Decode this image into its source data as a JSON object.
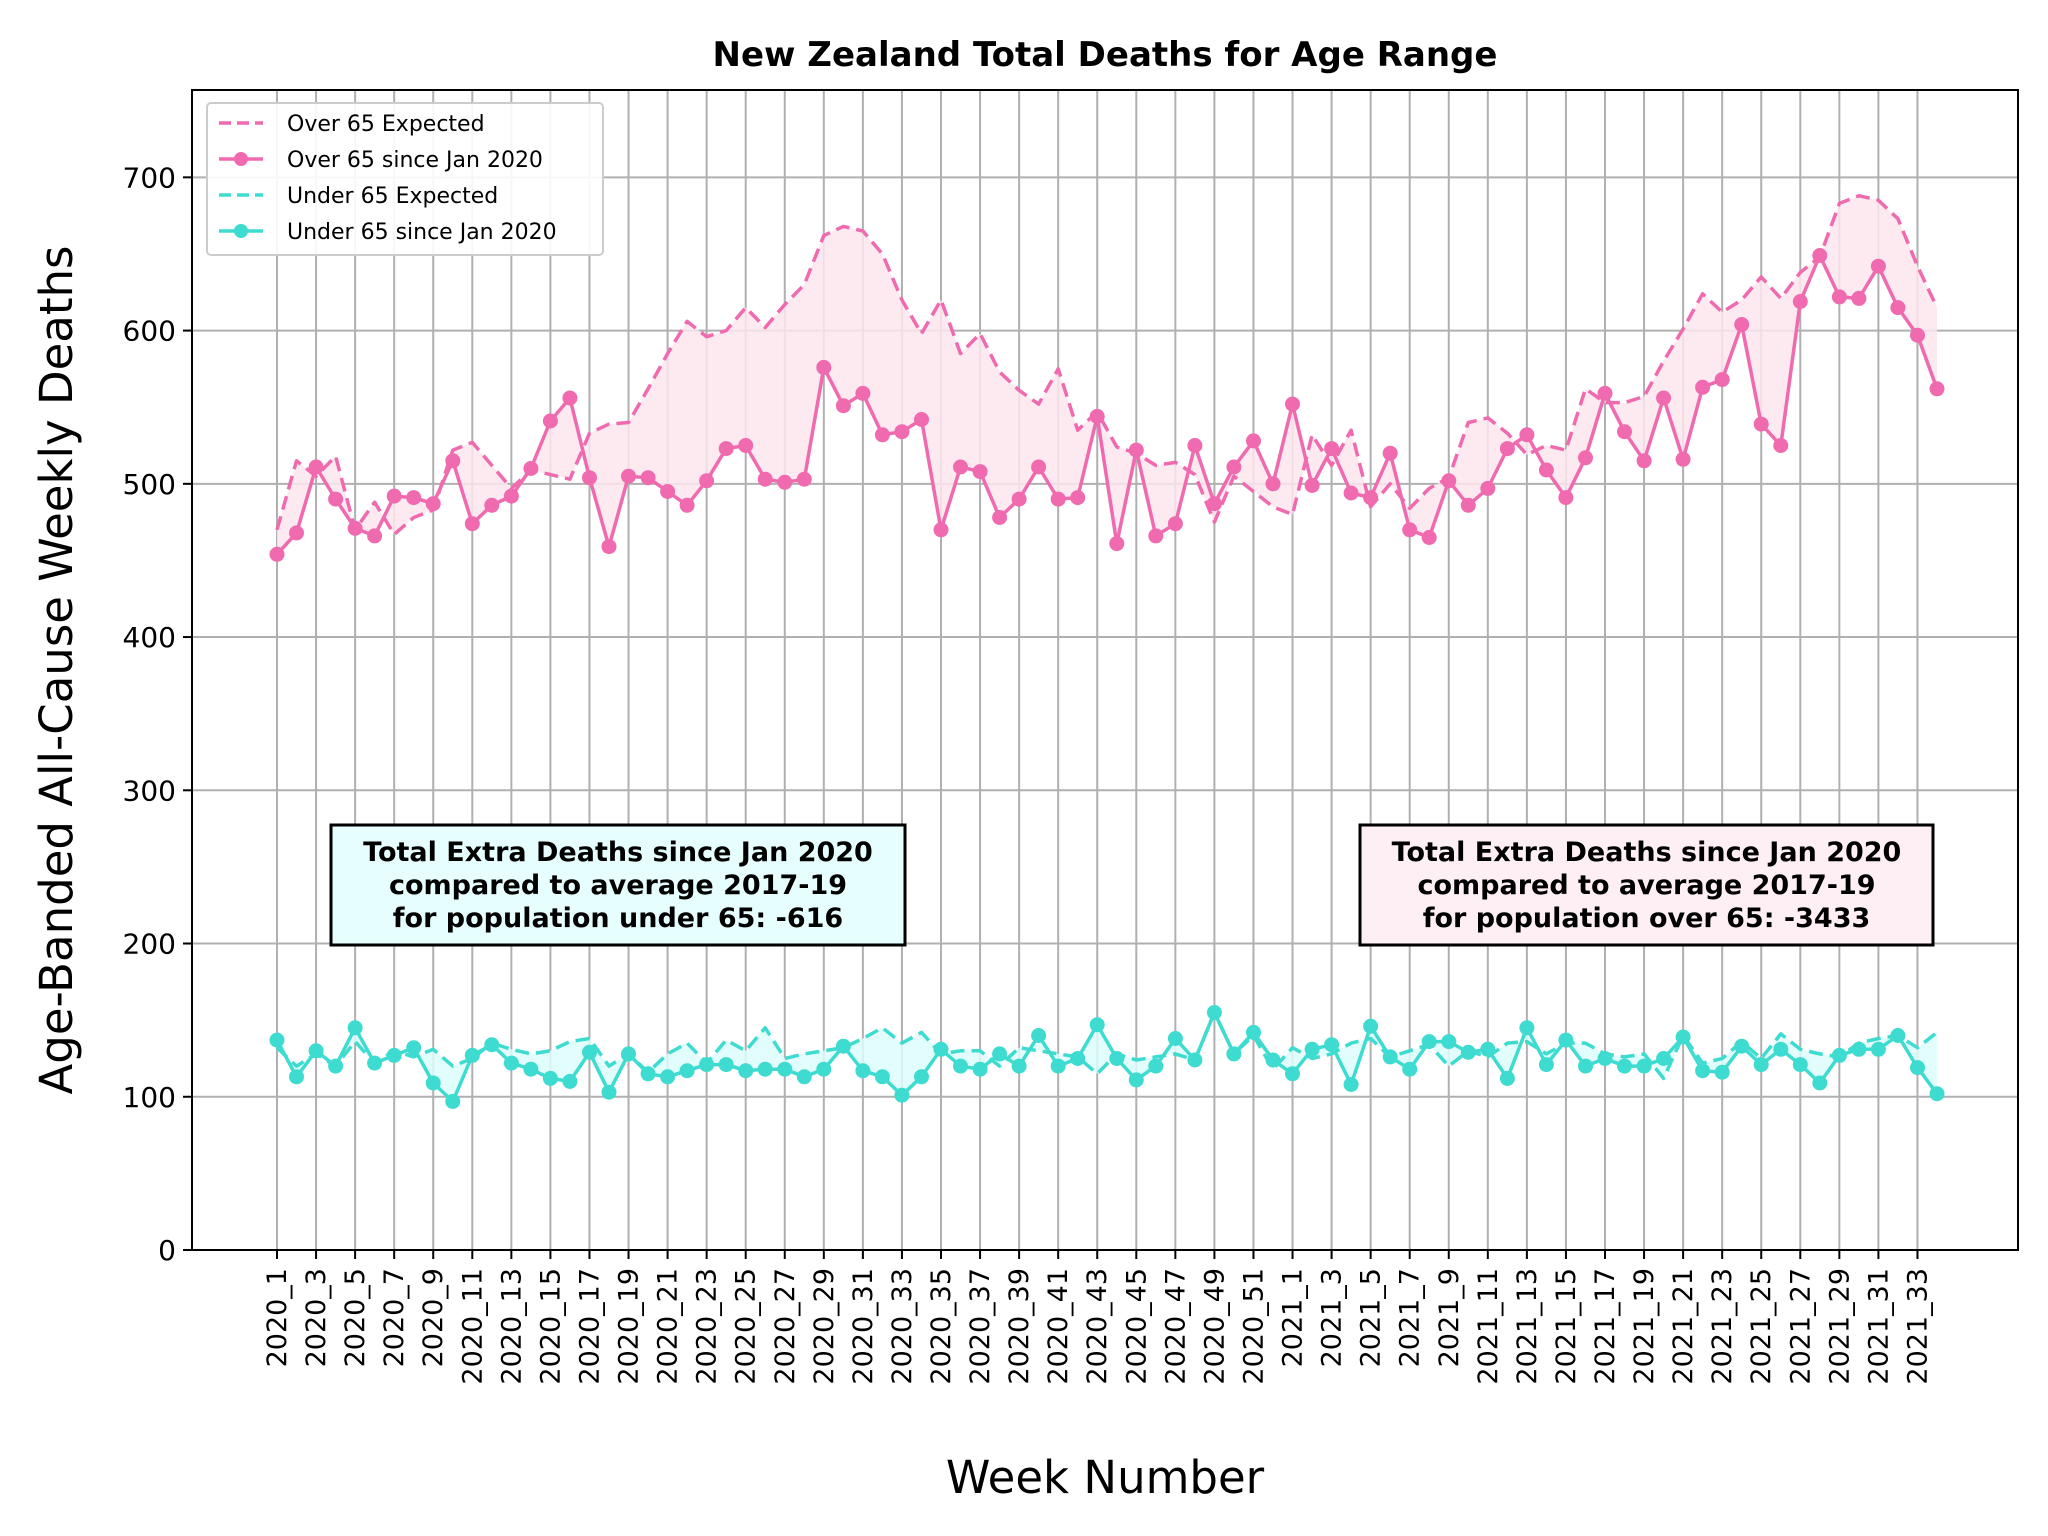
{
  "chart_data": {
    "type": "line",
    "title": "New Zealand Total Deaths for Age Range",
    "xlabel": "Week Number",
    "ylabel": "Age-Banded All-Cause Weekly Deaths",
    "ylim": [
      0,
      757
    ],
    "yticks": [
      0,
      100,
      200,
      300,
      400,
      500,
      600,
      700
    ],
    "grid": true,
    "legend_position": "upper-left",
    "x": [
      "2020_1",
      "2020_2",
      "2020_3",
      "2020_4",
      "2020_5",
      "2020_6",
      "2020_7",
      "2020_8",
      "2020_9",
      "2020_10",
      "2020_11",
      "2020_12",
      "2020_13",
      "2020_14",
      "2020_15",
      "2020_16",
      "2020_17",
      "2020_18",
      "2020_19",
      "2020_20",
      "2020_21",
      "2020_22",
      "2020_23",
      "2020_24",
      "2020_25",
      "2020_26",
      "2020_27",
      "2020_28",
      "2020_29",
      "2020_30",
      "2020_31",
      "2020_32",
      "2020_33",
      "2020_34",
      "2020_35",
      "2020_36",
      "2020_37",
      "2020_38",
      "2020_39",
      "2020_40",
      "2020_41",
      "2020_42",
      "2020_43",
      "2020_44",
      "2020_45",
      "2020_46",
      "2020_47",
      "2020_48",
      "2020_49",
      "2020_50",
      "2020_51",
      "2020_52",
      "2021_1",
      "2021_2",
      "2021_3",
      "2021_4",
      "2021_5",
      "2021_6",
      "2021_7",
      "2021_8",
      "2021_9",
      "2021_10",
      "2021_11",
      "2021_12",
      "2021_13",
      "2021_14",
      "2021_15",
      "2021_16",
      "2021_17",
      "2021_18",
      "2021_19",
      "2021_20",
      "2021_21",
      "2021_22",
      "2021_23",
      "2021_24",
      "2021_25",
      "2021_26",
      "2021_27",
      "2021_28",
      "2021_29",
      "2021_30",
      "2021_31",
      "2021_32",
      "2021_33",
      "2021_34"
    ],
    "xtick_labels": [
      "2020_1",
      "2020_3",
      "2020_5",
      "2020_7",
      "2020_9",
      "2020_11",
      "2020_13",
      "2020_15",
      "2020_17",
      "2020_19",
      "2020_21",
      "2020_23",
      "2020_25",
      "2020_27",
      "2020_29",
      "2020_31",
      "2020_33",
      "2020_35",
      "2020_37",
      "2020_39",
      "2020_41",
      "2020_43",
      "2020_45",
      "2020_47",
      "2020_49",
      "2020_51",
      "2021_1",
      "2021_3",
      "2021_5",
      "2021_7",
      "2021_9",
      "2021_11",
      "2021_13",
      "2021_15",
      "2021_17",
      "2021_19",
      "2021_21",
      "2021_23",
      "2021_25",
      "2021_27",
      "2021_29",
      "2021_31",
      "2021_33"
    ],
    "series": [
      {
        "name": "Over 65 Expected",
        "style": "dashed",
        "color": "#f06aaf",
        "values": [
          470,
          515,
          505,
          518,
          470,
          488,
          467,
          478,
          483,
          522,
          527,
          512,
          497,
          509,
          506,
          503,
          533,
          539,
          540,
          562,
          585,
          606,
          596,
          600,
          615,
          602,
          617,
          630,
          662,
          668,
          665,
          650,
          620,
          598,
          620,
          585,
          598,
          573,
          561,
          552,
          575,
          535,
          547,
          524,
          520,
          512,
          514,
          506,
          475,
          505,
          495,
          485,
          480,
          532,
          512,
          535,
          485,
          500,
          484,
          497,
          504,
          540,
          543,
          533,
          519,
          525,
          522,
          562,
          553,
          553,
          557,
          580,
          601,
          624,
          612,
          620,
          635,
          621,
          638,
          648,
          683,
          688,
          685,
          673,
          642,
          615
        ]
      },
      {
        "name": "Over 65 since Jan 2020",
        "style": "solid-marker",
        "color": "#f06aaf",
        "values": [
          454,
          468,
          511,
          490,
          471,
          466,
          492,
          491,
          487,
          515,
          474,
          486,
          492,
          510,
          541,
          556,
          504,
          459,
          505,
          504,
          495,
          486,
          502,
          523,
          525,
          503,
          501,
          503,
          576,
          551,
          559,
          532,
          534,
          542,
          470,
          511,
          508,
          478,
          490,
          511,
          490,
          491,
          544,
          461,
          522,
          466,
          474,
          525,
          487,
          511,
          528,
          500,
          552,
          499,
          523,
          494,
          491,
          520,
          470,
          465,
          502,
          486,
          497,
          523,
          532,
          509,
          491,
          517,
          559,
          534,
          515,
          556,
          516,
          563,
          568,
          604,
          539,
          525,
          619,
          649,
          622,
          621,
          642,
          615,
          597,
          562
        ]
      },
      {
        "name": "Under 65 Expected",
        "style": "dashed",
        "color": "#3edbd0",
        "values": [
          132,
          120,
          128,
          120,
          136,
          122,
          130,
          126,
          131,
          120,
          125,
          135,
          131,
          128,
          130,
          136,
          138,
          120,
          128,
          116,
          128,
          135,
          122,
          137,
          130,
          145,
          125,
          128,
          130,
          132,
          138,
          145,
          135,
          142,
          128,
          130,
          130,
          120,
          132,
          130,
          128,
          126,
          115,
          128,
          124,
          126,
          128,
          124,
          155,
          128,
          140,
          118,
          132,
          125,
          128,
          135,
          138,
          126,
          130,
          134,
          120,
          130,
          126,
          135,
          136,
          128,
          135,
          135,
          128,
          126,
          128,
          112,
          140,
          122,
          125,
          136,
          125,
          141,
          131,
          128,
          126,
          135,
          138,
          140,
          132,
          142
        ]
      },
      {
        "name": "Under 65 since Jan 2020",
        "style": "solid-marker",
        "color": "#3edbd0",
        "values": [
          137,
          113,
          130,
          120,
          145,
          122,
          127,
          132,
          109,
          97,
          127,
          134,
          122,
          118,
          112,
          110,
          129,
          103,
          128,
          115,
          113,
          117,
          121,
          121,
          117,
          118,
          118,
          113,
          118,
          133,
          117,
          113,
          101,
          113,
          131,
          120,
          118,
          128,
          120,
          140,
          120,
          125,
          147,
          125,
          111,
          120,
          138,
          124,
          155,
          128,
          142,
          124,
          115,
          131,
          134,
          108,
          146,
          126,
          118,
          136,
          136,
          129,
          131,
          112,
          145,
          121,
          137,
          120,
          125,
          120,
          120,
          125,
          139,
          117,
          116,
          133,
          121,
          131,
          121,
          109,
          127,
          131,
          131,
          140,
          119,
          102
        ]
      }
    ],
    "annotations": [
      {
        "lines": [
          "Total Extra Deaths since Jan 2020",
          "compared to average 2017-19",
          "for population under 65: -616"
        ],
        "background": "#e6fefe"
      },
      {
        "lines": [
          "Total Extra Deaths since Jan 2020",
          "compared to average 2017-19",
          "for population over 65: -3433"
        ],
        "background": "#fdeff3"
      }
    ]
  }
}
